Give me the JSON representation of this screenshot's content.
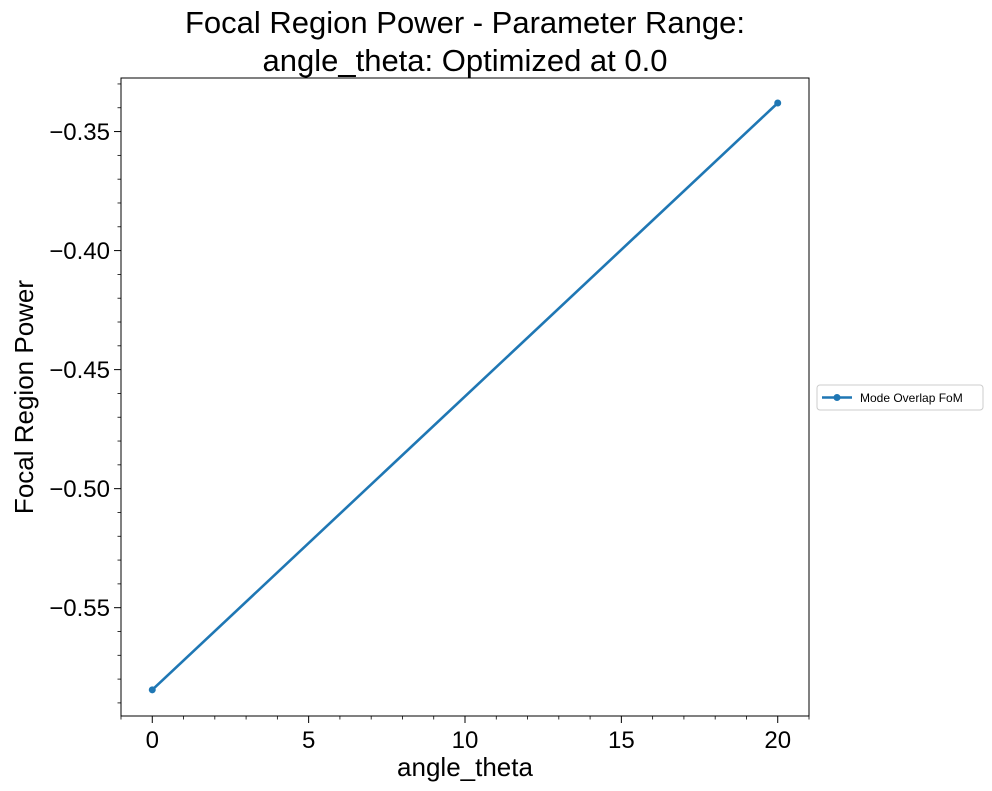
{
  "chart_data": {
    "type": "line",
    "title_lines": [
      "Focal Region Power - Parameter Range:",
      "angle_theta: Optimized at 0.0"
    ],
    "xlabel": "angle_theta",
    "ylabel": "Focal Region Power",
    "xlim": [
      -1,
      21
    ],
    "ylim": [
      -0.5955,
      -0.3275
    ],
    "xticks": [
      0,
      5,
      10,
      15,
      20
    ],
    "xtick_labels": [
      "0",
      "5",
      "10",
      "15",
      "20"
    ],
    "yticks": [
      -0.55,
      -0.5,
      -0.45,
      -0.4,
      -0.35
    ],
    "ytick_labels": [
      "−0.55",
      "−0.50",
      "−0.45",
      "−0.40",
      "−0.35"
    ],
    "x_minor_step": 1,
    "y_minor_step": 0.01,
    "grid": false,
    "legend_position": "center-right-outside",
    "series": [
      {
        "name": "Mode Overlap FoM",
        "color": "#1f77b4",
        "marker": "circle",
        "x": [
          0,
          20
        ],
        "y": [
          -0.5845,
          -0.338
        ]
      }
    ]
  }
}
